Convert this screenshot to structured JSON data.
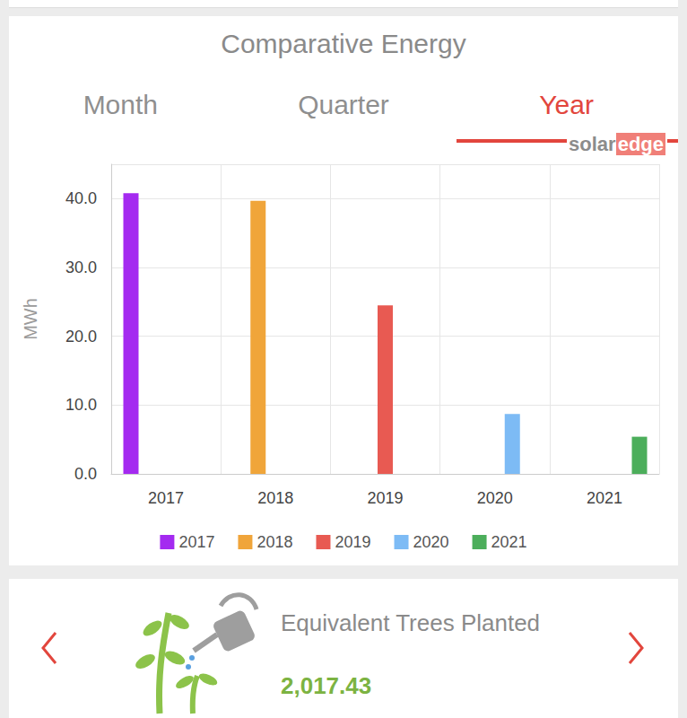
{
  "header": {
    "title": "Comparative Energy",
    "tabs": [
      "Month",
      "Quarter",
      "Year"
    ],
    "active_tab": "Year",
    "logo": [
      "solar",
      "edge"
    ]
  },
  "chart_data": {
    "type": "bar",
    "y_label": "MWh",
    "categories": [
      "2017",
      "2018",
      "2019",
      "2020",
      "2021"
    ],
    "series": [
      {
        "name": "2017",
        "color": "#a42af0",
        "values": [
          40.8,
          null,
          null,
          null,
          null
        ]
      },
      {
        "name": "2018",
        "color": "#f0a53a",
        "values": [
          null,
          39.7,
          null,
          null,
          null
        ]
      },
      {
        "name": "2019",
        "color": "#e85a52",
        "values": [
          null,
          null,
          24.5,
          null,
          null
        ]
      },
      {
        "name": "2020",
        "color": "#7dbbf5",
        "values": [
          null,
          null,
          null,
          8.7,
          null
        ]
      },
      {
        "name": "2021",
        "color": "#4cae5b",
        "values": [
          null,
          null,
          null,
          null,
          5.4
        ]
      }
    ],
    "ylim": [
      0,
      45
    ],
    "yticks": [
      {
        "value": 0,
        "label": "0.0"
      },
      {
        "value": 10,
        "label": "10.0"
      },
      {
        "value": 20,
        "label": "20.0"
      },
      {
        "value": 30,
        "label": "30.0"
      },
      {
        "value": 40,
        "label": "40.0"
      }
    ],
    "grid": true,
    "legend": "bottom"
  },
  "card": {
    "title": "Equivalent Trees Planted",
    "value": "2,017.43"
  }
}
